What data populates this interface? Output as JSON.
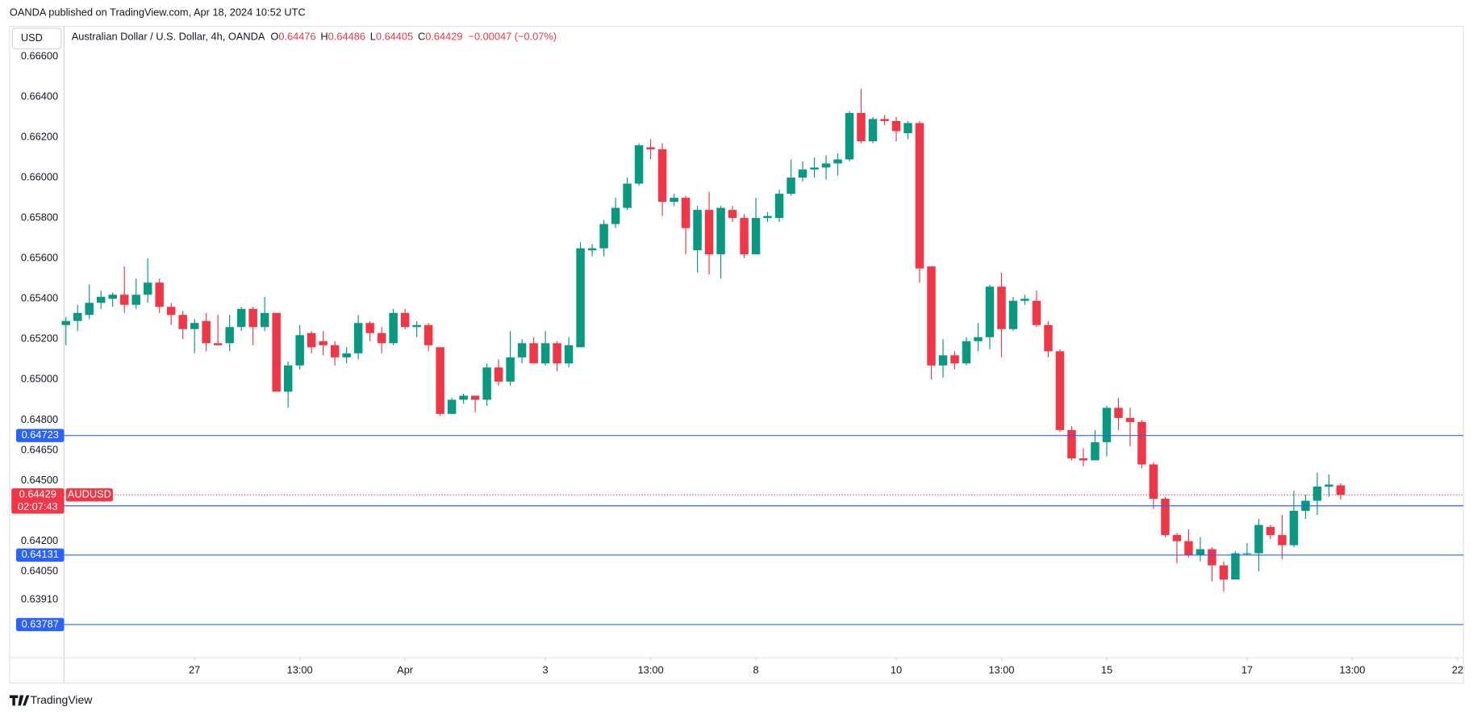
{
  "header": {
    "attribution": "OANDA published on TradingView.com, Apr 18, 2024 10:52 UTC",
    "currency": "USD",
    "symbol": "Australian Dollar / U.S. Dollar, 4h, OANDA",
    "o": "O",
    "h": "H",
    "l": "L",
    "c": "C",
    "change": "−0.00047 (−0.07%)",
    "footer": "TradingView"
  },
  "chart_data": {
    "type": "candlestick",
    "symbol": "AUDUSD",
    "countdown": "02:07:43",
    "up_color": "#089981",
    "down_color": "#f23645",
    "level_color": "#2962ff",
    "open": [
      0.6527,
      0.6529,
      0.6532,
      0.6538,
      0.654,
      0.6542,
      0.6537,
      0.6542,
      0.6548,
      0.6536,
      0.6532,
      0.6525,
      0.6529,
      0.6518,
      0.6518,
      0.6526,
      0.6535,
      0.6526,
      0.6533,
      0.6494,
      0.6507,
      0.6523,
      0.6519,
      0.6517,
      0.6511,
      0.6513,
      0.6528,
      0.6523,
      0.6518,
      0.6533,
      0.6526,
      0.6527,
      0.6516,
      0.6483,
      0.649,
      0.6492,
      0.649,
      0.6506,
      0.6499,
      0.6511,
      0.6518,
      0.6508,
      0.6518,
      0.6508,
      0.6516,
      0.6564,
      0.6565,
      0.6577,
      0.6585,
      0.6597,
      0.6615,
      0.6614,
      0.6588,
      0.659,
      0.6564,
      0.6584,
      0.6562,
      0.6584,
      0.658,
      0.6562,
      0.658,
      0.658,
      0.6592,
      0.66,
      0.6604,
      0.6605,
      0.6607,
      0.6609,
      0.6632,
      0.6618,
      0.6629,
      0.6628,
      0.6622,
      0.6627,
      0.6556,
      0.6507,
      0.6512,
      0.6508,
      0.6519,
      0.6521,
      0.6546,
      0.6525,
      0.6539,
      0.6539,
      0.6527,
      0.6514,
      0.6475,
      0.6461,
      0.646,
      0.6469,
      0.6486,
      0.6481,
      0.6479,
      0.6458,
      0.6441,
      0.6423,
      0.642,
      0.6413,
      0.6416,
      0.6408,
      0.6401,
      0.6414,
      0.6414,
      0.6427,
      0.6423,
      0.6418,
      0.6435,
      0.644,
      0.6447,
      0.64476
    ],
    "high": [
      0.6531,
      0.6537,
      0.6547,
      0.6544,
      0.6543,
      0.6556,
      0.655,
      0.656,
      0.655,
      0.6538,
      0.6534,
      0.653,
      0.6533,
      0.6532,
      0.6532,
      0.6536,
      0.6536,
      0.6541,
      0.6533,
      0.6509,
      0.6527,
      0.6524,
      0.6524,
      0.6519,
      0.6516,
      0.6532,
      0.6529,
      0.6526,
      0.6535,
      0.6535,
      0.6529,
      0.6528,
      0.6516,
      0.6491,
      0.6493,
      0.6492,
      0.6508,
      0.651,
      0.6524,
      0.652,
      0.6521,
      0.6524,
      0.6519,
      0.6521,
      0.6568,
      0.6567,
      0.6579,
      0.659,
      0.66,
      0.6617,
      0.6619,
      0.6617,
      0.6592,
      0.6591,
      0.6586,
      0.6593,
      0.6586,
      0.6586,
      0.6582,
      0.659,
      0.6583,
      0.6594,
      0.6609,
      0.6608,
      0.661,
      0.6611,
      0.6612,
      0.6633,
      0.6644,
      0.663,
      0.6631,
      0.663,
      0.6628,
      0.6628,
      0.6556,
      0.652,
      0.6514,
      0.6521,
      0.6528,
      0.6547,
      0.6553,
      0.6541,
      0.6542,
      0.6544,
      0.6529,
      0.6515,
      0.6477,
      0.6466,
      0.6475,
      0.6487,
      0.6491,
      0.6486,
      0.648,
      0.6459,
      0.6442,
      0.6424,
      0.6426,
      0.6422,
      0.6417,
      0.641,
      0.6415,
      0.6419,
      0.6431,
      0.6428,
      0.6433,
      0.6445,
      0.6443,
      0.6454,
      0.6453,
      0.64486
    ],
    "low": [
      0.6517,
      0.6524,
      0.653,
      0.6535,
      0.6536,
      0.6533,
      0.6535,
      0.6538,
      0.6533,
      0.6527,
      0.652,
      0.6513,
      0.6514,
      0.6517,
      0.6514,
      0.6524,
      0.6517,
      0.6524,
      0.6494,
      0.6486,
      0.6505,
      0.6513,
      0.6512,
      0.6507,
      0.6508,
      0.651,
      0.6519,
      0.6513,
      0.6517,
      0.6525,
      0.6521,
      0.6514,
      0.6482,
      0.6483,
      0.6488,
      0.6484,
      0.6487,
      0.6497,
      0.6497,
      0.6508,
      0.6508,
      0.6507,
      0.6504,
      0.6506,
      0.6516,
      0.6561,
      0.6561,
      0.6575,
      0.6584,
      0.6596,
      0.6609,
      0.6581,
      0.6586,
      0.6562,
      0.6553,
      0.6552,
      0.655,
      0.6578,
      0.656,
      0.6562,
      0.6578,
      0.6578,
      0.6591,
      0.6598,
      0.66,
      0.6599,
      0.6601,
      0.6608,
      0.6617,
      0.6617,
      0.6626,
      0.6618,
      0.6619,
      0.6548,
      0.65,
      0.6501,
      0.6505,
      0.6507,
      0.6514,
      0.6515,
      0.6511,
      0.6524,
      0.6537,
      0.6526,
      0.6511,
      0.6474,
      0.646,
      0.6457,
      0.646,
      0.6462,
      0.6475,
      0.6467,
      0.6456,
      0.6436,
      0.6422,
      0.6409,
      0.6412,
      0.641,
      0.64,
      0.6395,
      0.6401,
      0.6413,
      0.6405,
      0.6421,
      0.6411,
      0.6417,
      0.6431,
      0.6433,
      0.6442,
      0.64405
    ],
    "close": [
      0.6529,
      0.6533,
      0.6538,
      0.6541,
      0.6542,
      0.6537,
      0.6542,
      0.6548,
      0.6536,
      0.6532,
      0.6525,
      0.6528,
      0.6518,
      0.6517,
      0.6526,
      0.6535,
      0.6526,
      0.6533,
      0.6494,
      0.6507,
      0.6522,
      0.6516,
      0.6517,
      0.6511,
      0.6513,
      0.6528,
      0.6523,
      0.6518,
      0.6533,
      0.6526,
      0.6527,
      0.6517,
      0.6483,
      0.649,
      0.6492,
      0.649,
      0.6506,
      0.6499,
      0.6511,
      0.6518,
      0.6508,
      0.6518,
      0.6508,
      0.6517,
      0.6565,
      0.6565,
      0.6577,
      0.6585,
      0.6597,
      0.6616,
      0.6614,
      0.6588,
      0.659,
      0.6575,
      0.6584,
      0.6562,
      0.6585,
      0.658,
      0.6562,
      0.658,
      0.6581,
      0.6592,
      0.66,
      0.6604,
      0.6605,
      0.6607,
      0.6609,
      0.6632,
      0.6618,
      0.6629,
      0.6628,
      0.6623,
      0.6627,
      0.6555,
      0.6507,
      0.6512,
      0.6508,
      0.6519,
      0.6521,
      0.6546,
      0.6525,
      0.6539,
      0.654,
      0.6527,
      0.6514,
      0.6475,
      0.6461,
      0.646,
      0.6469,
      0.6486,
      0.6481,
      0.6479,
      0.6458,
      0.6441,
      0.6423,
      0.642,
      0.6413,
      0.6416,
      0.6408,
      0.6401,
      0.6414,
      0.6414,
      0.6428,
      0.6423,
      0.6418,
      0.6435,
      0.644,
      0.6447,
      0.6448,
      0.64429
    ],
    "levels": [
      0.64723,
      0.64375,
      0.64131,
      0.63787
    ],
    "xlim": [
      -0.16,
      119.5
    ],
    "ylim": [
      0.63623,
      0.66749
    ],
    "xticks": [
      {
        "value": 11,
        "label": "27"
      },
      {
        "value": 20,
        "label": "13:00"
      },
      {
        "value": 29,
        "label": "Apr"
      },
      {
        "value": 41,
        "label": "3"
      },
      {
        "value": 50,
        "label": "13:00"
      },
      {
        "value": 59,
        "label": "8"
      },
      {
        "value": 71,
        "label": "10"
      },
      {
        "value": 80,
        "label": "13:00"
      },
      {
        "value": 89,
        "label": "15"
      },
      {
        "value": 101,
        "label": "17"
      },
      {
        "value": 110,
        "label": "13:00"
      },
      {
        "value": 119,
        "label": "22"
      }
    ],
    "yticks": [
      {
        "value": 0.666,
        "label": "0.66600"
      },
      {
        "value": 0.664,
        "label": "0.66400"
      },
      {
        "value": 0.662,
        "label": "0.66200"
      },
      {
        "value": 0.66,
        "label": "0.66000"
      },
      {
        "value": 0.658,
        "label": "0.65800"
      },
      {
        "value": 0.656,
        "label": "0.65600"
      },
      {
        "value": 0.654,
        "label": "0.65400"
      },
      {
        "value": 0.652,
        "label": "0.65200"
      },
      {
        "value": 0.65,
        "label": "0.65000"
      },
      {
        "value": 0.648,
        "label": "0.64800"
      },
      {
        "value": 0.6465,
        "label": "0.64650"
      },
      {
        "value": 0.645,
        "label": "0.64500"
      },
      {
        "value": 0.642,
        "label": "0.64200"
      },
      {
        "value": 0.6405,
        "label": "0.64050"
      },
      {
        "value": 0.6391,
        "label": "0.63910"
      }
    ],
    "grid": false
  }
}
